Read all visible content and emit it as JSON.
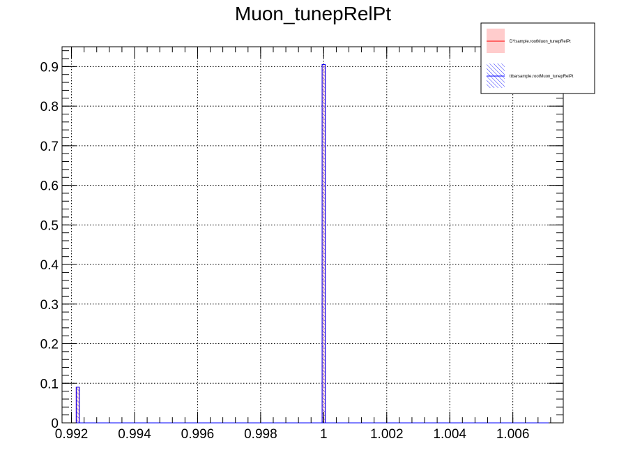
{
  "chart_data": {
    "type": "bar",
    "title": "Muon_tunepRelPt",
    "xlabel": "",
    "ylabel": "",
    "xlim": [
      0.9917,
      1.0076
    ],
    "ylim": [
      0,
      0.95
    ],
    "x_ticks": [
      0.992,
      0.994,
      0.996,
      0.998,
      1,
      1.002,
      1.004,
      1.006
    ],
    "x_tick_labels": [
      "0.992",
      "0.994",
      "0.996",
      "0.998",
      "1",
      "1.002",
      "1.004",
      "1.006"
    ],
    "y_ticks": [
      0,
      0.1,
      0.2,
      0.3,
      0.4,
      0.5,
      0.6,
      0.7,
      0.8,
      0.9
    ],
    "y_tick_labels": [
      "0",
      "0.1",
      "0.2",
      "0.3",
      "0.4",
      "0.5",
      "0.6",
      "0.7",
      "0.8",
      "0.9"
    ],
    "grid": true,
    "legend_position": "top-right",
    "series": [
      {
        "name": "DYsample.rootMuon_tunepRelPt",
        "color": "#ff0000",
        "fill": "#ffcccc",
        "bins": [
          {
            "low": 0.99215,
            "high": 0.99225,
            "value": 0.09
          },
          {
            "low": 0.99995,
            "high": 1.00005,
            "value": 0.905
          }
        ]
      },
      {
        "name": "ttbarsample.rootMuon_tunepRelPt",
        "color": "#0000ff",
        "fill": "hatched-blue",
        "bins": [
          {
            "low": 0.99215,
            "high": 0.99225,
            "value": 0.09
          },
          {
            "low": 0.99995,
            "high": 1.00005,
            "value": 0.905
          }
        ]
      }
    ]
  }
}
